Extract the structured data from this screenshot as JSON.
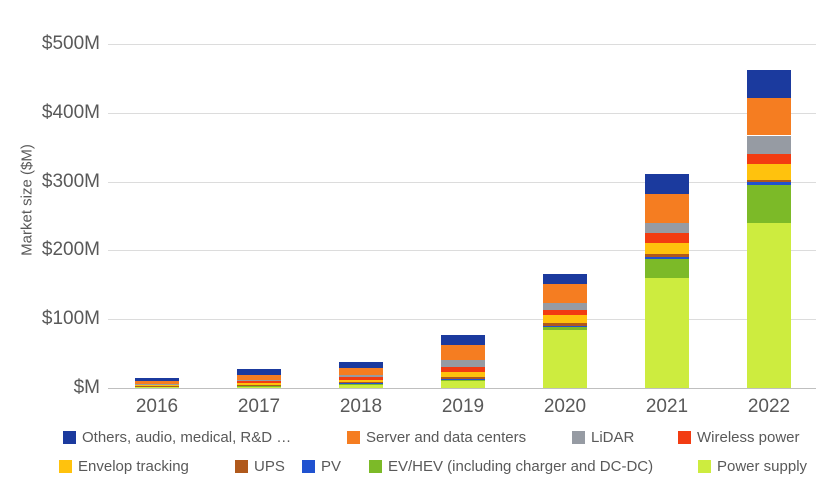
{
  "chart_data": {
    "type": "bar",
    "stacked": true,
    "title": "",
    "ylabel": "Market size ($M)",
    "xlabel": "",
    "categories": [
      "2016",
      "2017",
      "2018",
      "2019",
      "2020",
      "2021",
      "2022"
    ],
    "series": [
      {
        "name": "Power supply",
        "color": "#cdec3f",
        "values": [
          2,
          3,
          5,
          10,
          85,
          160,
          240
        ]
      },
      {
        "name": "EV/HEV (including charger and DC-DC)",
        "color": "#7cba28",
        "values": [
          0.2,
          0.5,
          1,
          1,
          3,
          27,
          55
        ]
      },
      {
        "name": "PV",
        "color": "#2052d0",
        "values": [
          0.3,
          0.5,
          1,
          1.5,
          2,
          4,
          4
        ]
      },
      {
        "name": "UPS",
        "color": "#b0591c",
        "values": [
          0.5,
          1,
          2,
          4,
          4,
          4,
          4
        ]
      },
      {
        "name": "Envelop tracking",
        "color": "#ffc20d",
        "values": [
          1,
          2,
          3,
          7,
          12,
          16,
          22
        ]
      },
      {
        "name": "Wireless power",
        "color": "#f23c12",
        "values": [
          1.5,
          3,
          4,
          7,
          8,
          14,
          15
        ]
      },
      {
        "name": "LiDAR",
        "color": "#969ba3",
        "values": [
          1,
          2,
          3.5,
          10,
          10,
          15,
          27
        ]
      },
      {
        "name": "Server and data centers",
        "color": "#f57d21",
        "values": [
          4,
          7,
          9,
          21.5,
          27,
          42,
          55
        ]
      },
      {
        "name": "Others, audio, medical, R&D …",
        "color": "#1b3a9e",
        "values": [
          4.5,
          8,
          9.5,
          15,
          15,
          29,
          40
        ]
      }
    ],
    "stack_order_note": "series listed bottom-to-top",
    "yticks": [
      {
        "label": "$500M",
        "value": 500
      },
      {
        "label": "$400M",
        "value": 400
      },
      {
        "label": "$300M",
        "value": 300
      },
      {
        "label": "$200M",
        "value": 200
      },
      {
        "label": "$100M",
        "value": 100
      },
      {
        "label": "$M",
        "value": 0
      }
    ],
    "ylim": [
      0,
      500
    ],
    "grid": true,
    "legend_position": "bottom",
    "legend_rows": [
      [
        {
          "label": "Others, audio, medical, R&D …",
          "color": "#1b3a9e"
        },
        {
          "label": "Server and data centers",
          "color": "#f57d21"
        },
        {
          "label": "LiDAR",
          "color": "#969ba3"
        },
        {
          "label": "Wireless power",
          "color": "#f23c12"
        }
      ],
      [
        {
          "label": "Envelop tracking",
          "color": "#ffc20d"
        },
        {
          "label": "UPS",
          "color": "#b0591c"
        },
        {
          "label": "PV",
          "color": "#2052d0"
        },
        {
          "label": "EV/HEV (including charger and DC-DC)",
          "color": "#7cba28"
        },
        {
          "label": "Power supply",
          "color": "#cdec3f"
        }
      ]
    ]
  },
  "colors": {
    "axis_text": "#595959",
    "gridline": "#dcdcdc",
    "axis_line": "#bfbfbf",
    "background": "#ffffff"
  }
}
